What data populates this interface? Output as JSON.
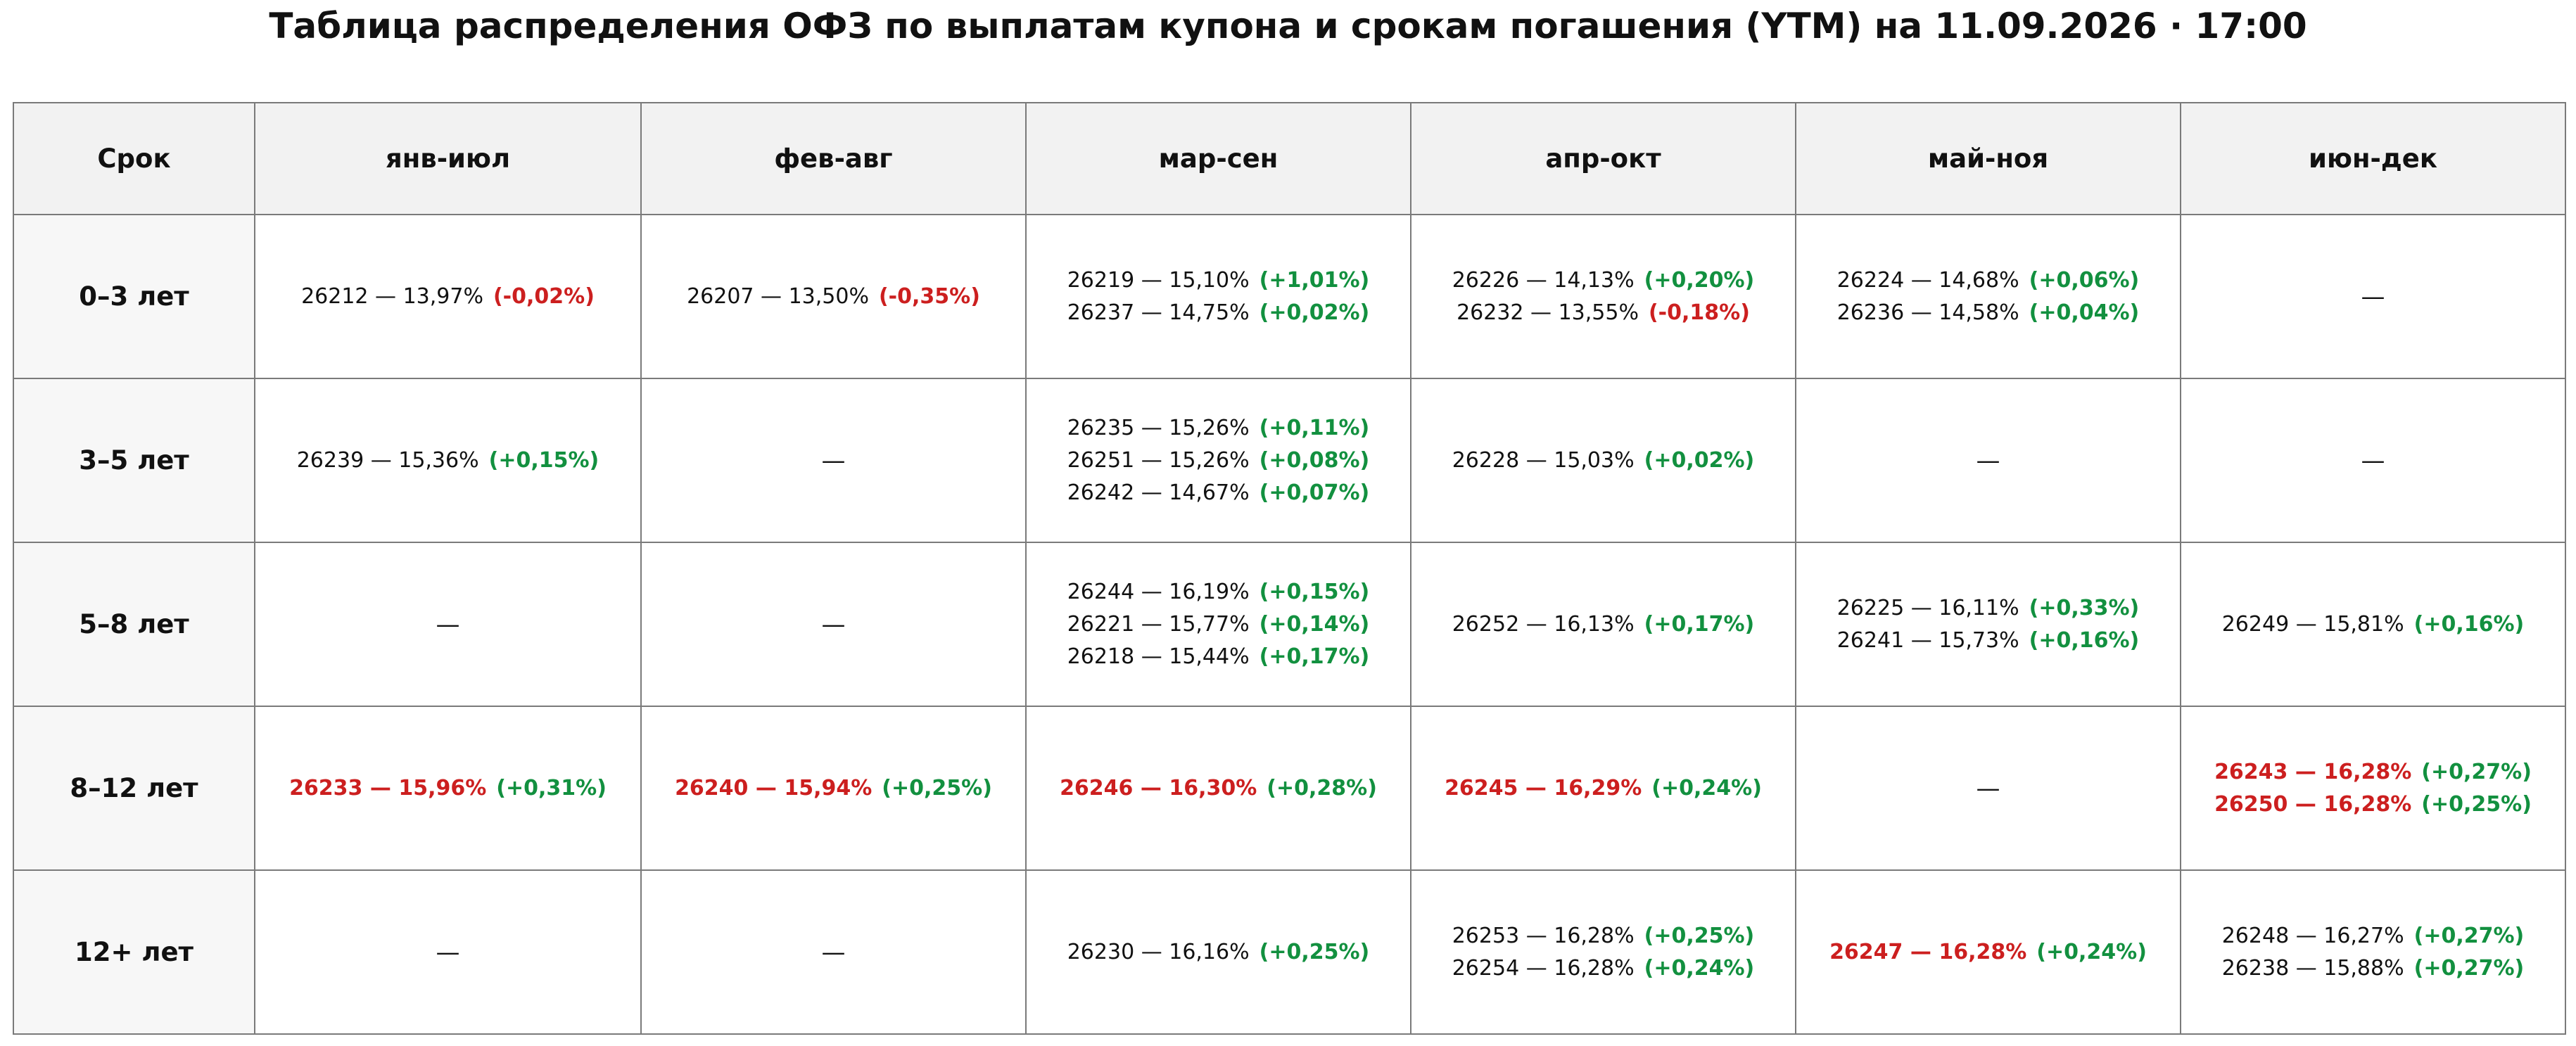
{
  "title": "Таблица распределения ОФЗ по выплатам купона и срокам погашения (YTM) на 11.09.2026 · 17:00",
  "table": {
    "header": [
      "Срок",
      "янв-июл",
      "фев-авг",
      "мар-сен",
      "апр-окт",
      "май-ноя",
      "июн-дек"
    ],
    "rows": [
      {
        "label": "0–3 лет",
        "cells": [
          [
            {
              "text": "26212 — 13,97%",
              "change": "(-0,02%)",
              "change_color": "#cc1f1f"
            }
          ],
          [
            {
              "text": "26207 — 13,50%",
              "change": "(-0,35%)",
              "change_color": "#cc1f1f"
            }
          ],
          [
            {
              "text": "26219 — 15,10%",
              "change": "(+1,01%)",
              "change_color": "#12903f"
            },
            {
              "text": "26237 — 14,75%",
              "change": "(+0,02%)",
              "change_color": "#12903f"
            }
          ],
          [
            {
              "text": "26226 — 14,13%",
              "change": "(+0,20%)",
              "change_color": "#12903f"
            },
            {
              "text": "26232 — 13,55%",
              "change": "(-0,18%)",
              "change_color": "#cc1f1f"
            }
          ],
          [
            {
              "text": "26224 — 14,68%",
              "change": "(+0,06%)",
              "change_color": "#12903f"
            },
            {
              "text": "26236 — 14,58%",
              "change": "(+0,04%)",
              "change_color": "#12903f"
            }
          ],
          "—"
        ]
      },
      {
        "label": "3–5 лет",
        "cells": [
          [
            {
              "text": "26239 — 15,36%",
              "change": "(+0,15%)",
              "change_color": "#12903f"
            }
          ],
          "—",
          [
            {
              "text": "26235 — 15,26%",
              "change": "(+0,11%)",
              "change_color": "#12903f"
            },
            {
              "text": "26251 — 15,26%",
              "change": "(+0,08%)",
              "change_color": "#12903f"
            },
            {
              "text": "26242 — 14,67%",
              "change": "(+0,07%)",
              "change_color": "#12903f"
            }
          ],
          [
            {
              "text": "26228 — 15,03%",
              "change": "(+0,02%)",
              "change_color": "#12903f"
            }
          ],
          "—",
          "—"
        ]
      },
      {
        "label": "5–8 лет",
        "cells": [
          "—",
          "—",
          [
            {
              "text": "26244 — 16,19%",
              "change": "(+0,15%)",
              "change_color": "#12903f"
            },
            {
              "text": "26221 — 15,77%",
              "change": "(+0,14%)",
              "change_color": "#12903f"
            },
            {
              "text": "26218 — 15,44%",
              "change": "(+0,17%)",
              "change_color": "#12903f"
            }
          ],
          [
            {
              "text": "26252 — 16,13%",
              "change": "(+0,17%)",
              "change_color": "#12903f"
            }
          ],
          [
            {
              "text": "26225 — 16,11%",
              "change": "(+0,33%)",
              "change_color": "#12903f"
            },
            {
              "text": "26241 — 15,73%",
              "change": "(+0,16%)",
              "change_color": "#12903f"
            }
          ],
          [
            {
              "text": "26249 — 15,81%",
              "change": "(+0,16%)",
              "change_color": "#12903f"
            }
          ]
        ]
      },
      {
        "label": "8–12 лет",
        "cells": [
          [
            {
              "text": "26233 — 15,96%",
              "change": "(+0,31%)",
              "change_color": "#12903f",
              "highlight": true
            }
          ],
          [
            {
              "text": "26240 — 15,94%",
              "change": "(+0,25%)",
              "change_color": "#12903f",
              "highlight": true
            }
          ],
          [
            {
              "text": "26246 — 16,30%",
              "change": "(+0,28%)",
              "change_color": "#12903f",
              "highlight": true
            }
          ],
          [
            {
              "text": "26245 — 16,29%",
              "change": "(+0,24%)",
              "change_color": "#12903f",
              "highlight": true
            }
          ],
          "—",
          [
            {
              "text": "26243 — 16,28%",
              "change": "(+0,27%)",
              "change_color": "#12903f",
              "highlight": true
            },
            {
              "text": "26250 — 16,28%",
              "change": "(+0,25%)",
              "change_color": "#12903f",
              "highlight": true
            }
          ]
        ]
      },
      {
        "label": "12+ лет",
        "cells": [
          "—",
          "—",
          [
            {
              "text": "26230 — 16,16%",
              "change": "(+0,25%)",
              "change_color": "#12903f"
            }
          ],
          [
            {
              "text": "26253 — 16,28%",
              "change": "(+0,25%)",
              "change_color": "#12903f"
            },
            {
              "text": "26254 — 16,28%",
              "change": "(+0,24%)",
              "change_color": "#12903f"
            }
          ],
          [
            {
              "text": "26247 — 16,28%",
              "change": "(+0,24%)",
              "change_color": "#12903f",
              "highlight": true
            }
          ],
          [
            {
              "text": "26248 — 16,27%",
              "change": "(+0,27%)",
              "change_color": "#12903f"
            },
            {
              "text": "26238 — 15,88%",
              "change": "(+0,27%)",
              "change_color": "#12903f"
            }
          ]
        ]
      }
    ]
  }
}
